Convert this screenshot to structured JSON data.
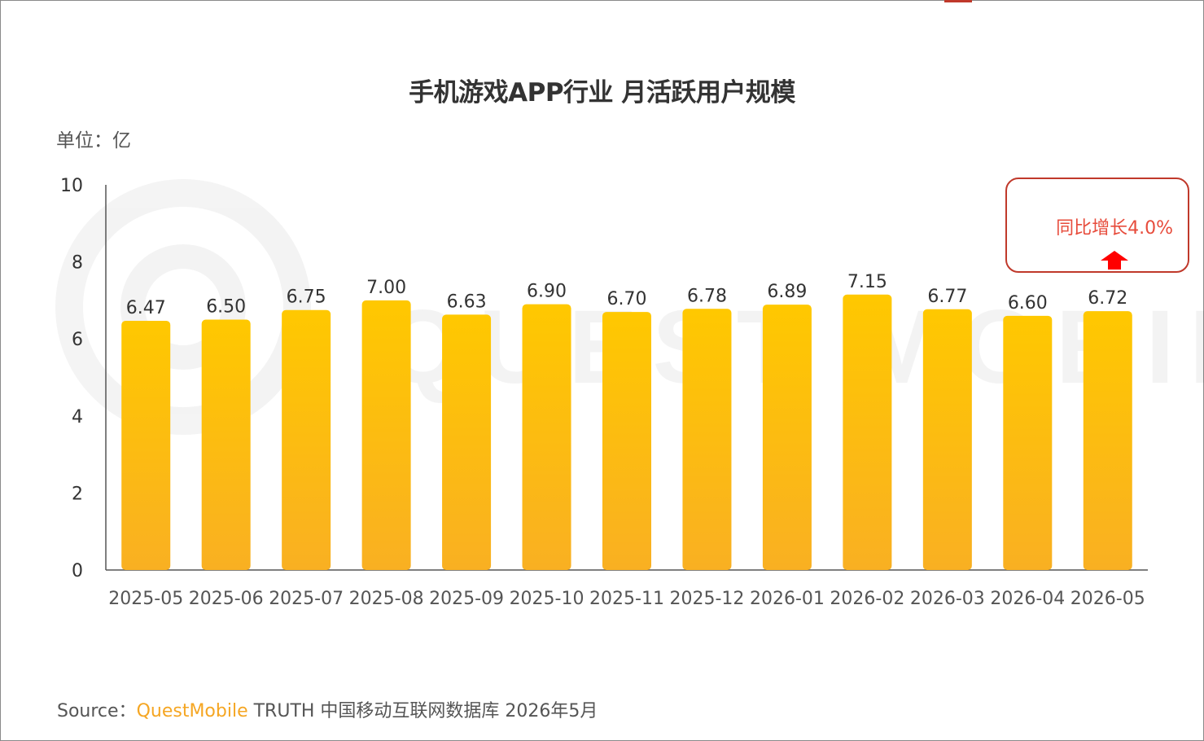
{
  "chart_data": {
    "type": "bar",
    "title": "手机游戏APP行业 月活跃用户规模",
    "unit_label": "单位：亿",
    "categories": [
      "2025-05",
      "2025-06",
      "2025-07",
      "2025-08",
      "2025-09",
      "2025-10",
      "2025-11",
      "2025-12",
      "2026-01",
      "2026-02",
      "2026-03",
      "2026-04",
      "2026-05"
    ],
    "values": [
      6.47,
      6.5,
      6.75,
      7.0,
      6.63,
      6.9,
      6.7,
      6.78,
      6.89,
      7.15,
      6.77,
      6.6,
      6.72
    ],
    "value_labels": [
      "6.47",
      "6.50",
      "6.75",
      "7.00",
      "6.63",
      "6.90",
      "6.70",
      "6.78",
      "6.89",
      "7.15",
      "6.77",
      "6.60",
      "6.72"
    ],
    "y_ticks": [
      "0",
      "2",
      "4",
      "6",
      "8",
      "10"
    ],
    "ylim": [
      0,
      10
    ],
    "grid": false,
    "legend": "none",
    "bar_color_top": "#FFC800",
    "bar_color_bottom": "#F9B022",
    "annotation": {
      "text": "同比增长4.0%",
      "color": "#E74C3C",
      "border_color": "#C0392B",
      "icon": "up-arrow-icon"
    }
  },
  "source": {
    "prefix": "Source：",
    "brand": "QuestMobile",
    "rest": " TRUTH 中国移动互联网数据库 2026年5月"
  }
}
